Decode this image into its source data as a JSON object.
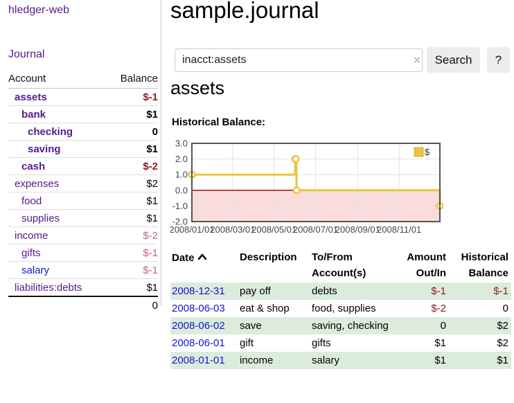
{
  "app": {
    "title": "hledger-web",
    "nav": {
      "journal": "Journal"
    }
  },
  "sidebar": {
    "headers": {
      "account": "Account",
      "balance": "Balance"
    },
    "accounts": [
      {
        "name": "assets",
        "balance": "$-1"
      },
      {
        "name": "bank",
        "balance": "$1"
      },
      {
        "name": "checking",
        "balance": "0"
      },
      {
        "name": "saving",
        "balance": "$1"
      },
      {
        "name": "cash",
        "balance": "$-2"
      },
      {
        "name": "expenses",
        "balance": "$2"
      },
      {
        "name": "food",
        "balance": "$1"
      },
      {
        "name": "supplies",
        "balance": "$1"
      },
      {
        "name": "income",
        "balance": "$-2"
      },
      {
        "name": "gifts",
        "balance": "$-1"
      },
      {
        "name": "salary",
        "balance": "$-1"
      },
      {
        "name": "liabilities:debts",
        "balance": "$1"
      }
    ],
    "total": "0"
  },
  "main": {
    "title": "sample.journal",
    "search": {
      "value": "inacct:assets",
      "clear_glyph": "×",
      "button": "Search",
      "help": "?"
    },
    "account_title": "assets",
    "chart_label": "Historical Balance:"
  },
  "chart_data": {
    "type": "line",
    "title": "Historical Balance",
    "steps": true,
    "series": [
      {
        "name": "$",
        "color": "#edc240",
        "points": [
          {
            "date": "2008-01-01",
            "value": 1
          },
          {
            "date": "2008-06-01",
            "value": 2
          },
          {
            "date": "2008-06-02",
            "value": 2
          },
          {
            "date": "2008-06-03",
            "value": 0
          },
          {
            "date": "2008-12-31",
            "value": -1
          }
        ]
      }
    ],
    "xrange": [
      "2008-01-01",
      "2008-12-31"
    ],
    "ylim": [
      -2,
      3
    ],
    "yticks": [
      {
        "value": 3,
        "label": "3.0"
      },
      {
        "value": 2,
        "label": "2.0"
      },
      {
        "value": 1,
        "label": "1.0"
      },
      {
        "value": 0,
        "label": "0.0"
      },
      {
        "value": -1,
        "label": "-1.0"
      },
      {
        "value": -2,
        "label": "-2.0"
      }
    ],
    "xticks": [
      {
        "date": "2008-01-01",
        "label": "2008/01/01"
      },
      {
        "date": "2008-03-01",
        "label": "2008/03/01"
      },
      {
        "date": "2008-05-01",
        "label": "2008/05/01"
      },
      {
        "date": "2008-07-01",
        "label": "2008/07/01"
      },
      {
        "date": "2008-09-01",
        "label": "2008/09/01"
      },
      {
        "date": "2008-11-01",
        "label": "2008/11/01"
      }
    ],
    "grid": true,
    "legend_position": "top-right",
    "negative_region_color": "#fbdcdc",
    "zero_line_color": "#8b0000",
    "border_color": "#545454",
    "grid_color": "#e2e2e2"
  },
  "register": {
    "headers": {
      "date": "Date",
      "description": "Description",
      "accounts": "To/From Account(s)",
      "amount": "Amount Out/In",
      "balance": "Historical Balance"
    },
    "rows": [
      {
        "date": "2008-12-31",
        "description": "pay off",
        "accounts": "debts",
        "amount": "$-1",
        "balance": "$-1"
      },
      {
        "date": "2008-06-03",
        "description": "eat & shop",
        "accounts": "food, supplies",
        "amount": "$-2",
        "balance": "0"
      },
      {
        "date": "2008-06-02",
        "description": "save",
        "accounts": "saving, checking",
        "amount": "0",
        "balance": "$2"
      },
      {
        "date": "2008-06-01",
        "description": "gift",
        "accounts": "gifts",
        "amount": "$1",
        "balance": "$2"
      },
      {
        "date": "2008-01-01",
        "description": "income",
        "accounts": "salary",
        "amount": "$1",
        "balance": "$1"
      }
    ]
  }
}
